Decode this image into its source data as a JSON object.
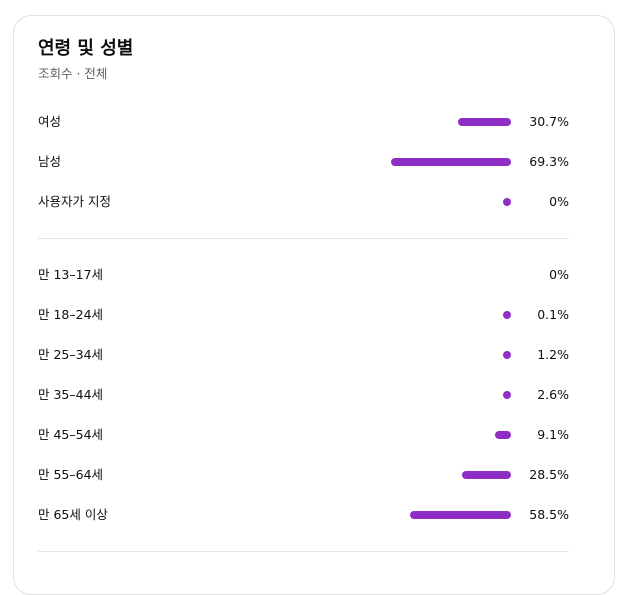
{
  "card": {
    "title": "연령 및 성별",
    "subtitle": "조회수 · 전체"
  },
  "colors": {
    "bar": "#8e2ec4",
    "divider": "#e5e5e5"
  },
  "gender": [
    {
      "label": "여성",
      "value": "30.7%",
      "pct": 30.7
    },
    {
      "label": "남성",
      "value": "69.3%",
      "pct": 69.3
    },
    {
      "label": "사용자가 지정",
      "value": "0%",
      "pct": 0,
      "dot": true
    }
  ],
  "age": [
    {
      "label": "만 13–17세",
      "value": "0%",
      "pct": 0,
      "dot": false
    },
    {
      "label": "만 18–24세",
      "value": "0.1%",
      "pct": 0.1,
      "dot": true
    },
    {
      "label": "만 25–34세",
      "value": "1.2%",
      "pct": 1.2,
      "dot": true
    },
    {
      "label": "만 35–44세",
      "value": "2.6%",
      "pct": 2.6,
      "dot": true
    },
    {
      "label": "만 45–54세",
      "value": "9.1%",
      "pct": 9.1
    },
    {
      "label": "만 55–64세",
      "value": "28.5%",
      "pct": 28.5
    },
    {
      "label": "만 65세 이상",
      "value": "58.5%",
      "pct": 58.5
    }
  ]
}
